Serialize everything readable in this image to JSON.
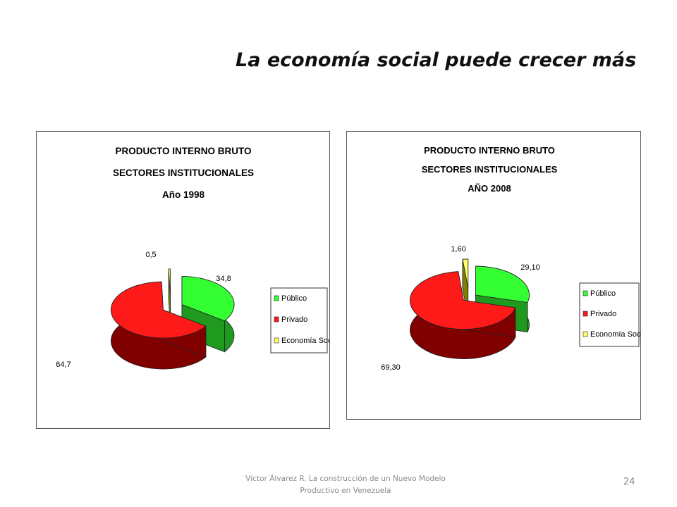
{
  "slide": {
    "title": "La economía social puede crecer más",
    "footer_line1": "Víctor Álvarez R. La construcción de un Nuevo Modelo",
    "footer_line2": "Productivo en Venezuela",
    "page_number": "24"
  },
  "colors": {
    "publico_top": "#33ff33",
    "publico_side": "#1f9a1f",
    "privado_top": "#ff1a1a",
    "privado_side": "#800000",
    "social_top": "#ffff66",
    "social_side": "#808000"
  },
  "chart_data": [
    {
      "type": "pie",
      "title_lines": [
        "PRODUCTO INTERNO BRUTO",
        "SECTORES INSTITUCIONALES",
        "Año 1998"
      ],
      "categories": [
        "Público",
        "Privado",
        "Economía Social"
      ],
      "values": [
        34.8,
        64.7,
        0.5
      ],
      "value_labels": [
        "34,8",
        "64,7",
        "0,5"
      ],
      "legend": [
        "Público",
        "Privado",
        "Economía Social"
      ],
      "legend_position": "right"
    },
    {
      "type": "pie",
      "title_lines": [
        "PRODUCTO INTERNO BRUTO",
        "SECTORES INSTITUCIONALES",
        "AÑO 2008"
      ],
      "categories": [
        "Público",
        "Privado",
        "Economía Social"
      ],
      "values": [
        29.1,
        69.3,
        1.6
      ],
      "value_labels": [
        "29,10",
        "69,30",
        "1,60"
      ],
      "legend": [
        "Público",
        "Privado",
        "Economía Social"
      ],
      "legend_position": "right"
    }
  ]
}
